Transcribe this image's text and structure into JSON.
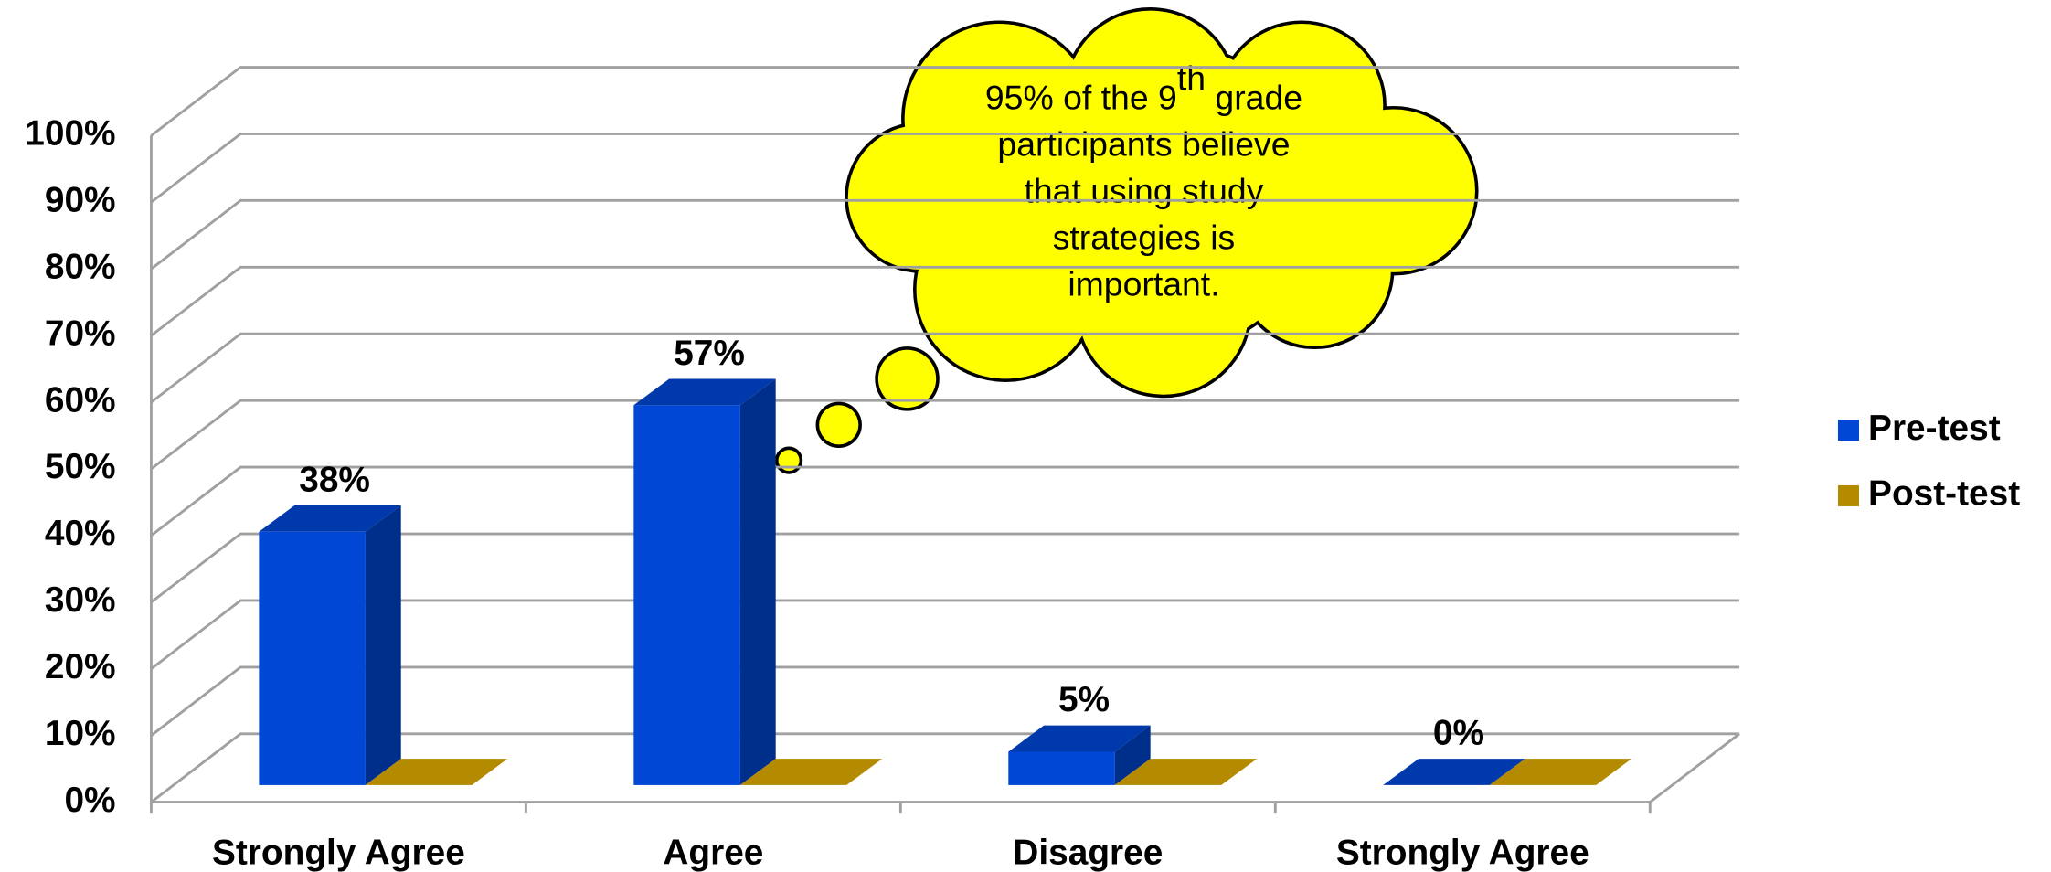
{
  "chart_data": {
    "type": "bar3d",
    "categories": [
      "Strongly Agree",
      "Agree",
      "Disagree",
      "Strongly Agree"
    ],
    "series": [
      {
        "name": "Pre-test",
        "color": "#0047d6",
        "values": [
          38,
          57,
          5,
          0
        ],
        "value_labels": [
          "38%",
          "57%",
          "5%",
          "0%"
        ]
      },
      {
        "name": "Post-test",
        "color": "#b38a00",
        "values": [
          0,
          0,
          0,
          0
        ]
      }
    ],
    "ylim": [
      0,
      100
    ],
    "yticks": [
      {
        "value": 0,
        "label": "0%"
      },
      {
        "value": 10,
        "label": "10%"
      },
      {
        "value": 20,
        "label": "20%"
      },
      {
        "value": 30,
        "label": "30%"
      },
      {
        "value": 40,
        "label": "40%"
      },
      {
        "value": 50,
        "label": "50%"
      },
      {
        "value": 60,
        "label": "60%"
      },
      {
        "value": 70,
        "label": "70%"
      },
      {
        "value": 80,
        "label": "80%"
      },
      {
        "value": 90,
        "label": "90%"
      },
      {
        "value": 100,
        "label": "100%"
      }
    ],
    "grid": true,
    "legend": "right",
    "annotation_lines": [
      [
        {
          "text": "95% of the 9",
          "bold": true,
          "sup": false
        },
        {
          "text": "th",
          "bold": true,
          "sup": true
        },
        {
          "text": " grade",
          "bold": true,
          "sup": false
        }
      ],
      [
        {
          "text": "participants",
          "bold": true,
          "sup": false
        },
        {
          "text": " believe",
          "bold": false,
          "sup": false
        }
      ],
      [
        {
          "text": "that using study",
          "bold": false,
          "sup": false
        }
      ],
      [
        {
          "text": "strategies is",
          "bold": false,
          "sup": false
        }
      ],
      [
        {
          "text": "important.",
          "bold": false,
          "sup": false
        }
      ]
    ]
  }
}
